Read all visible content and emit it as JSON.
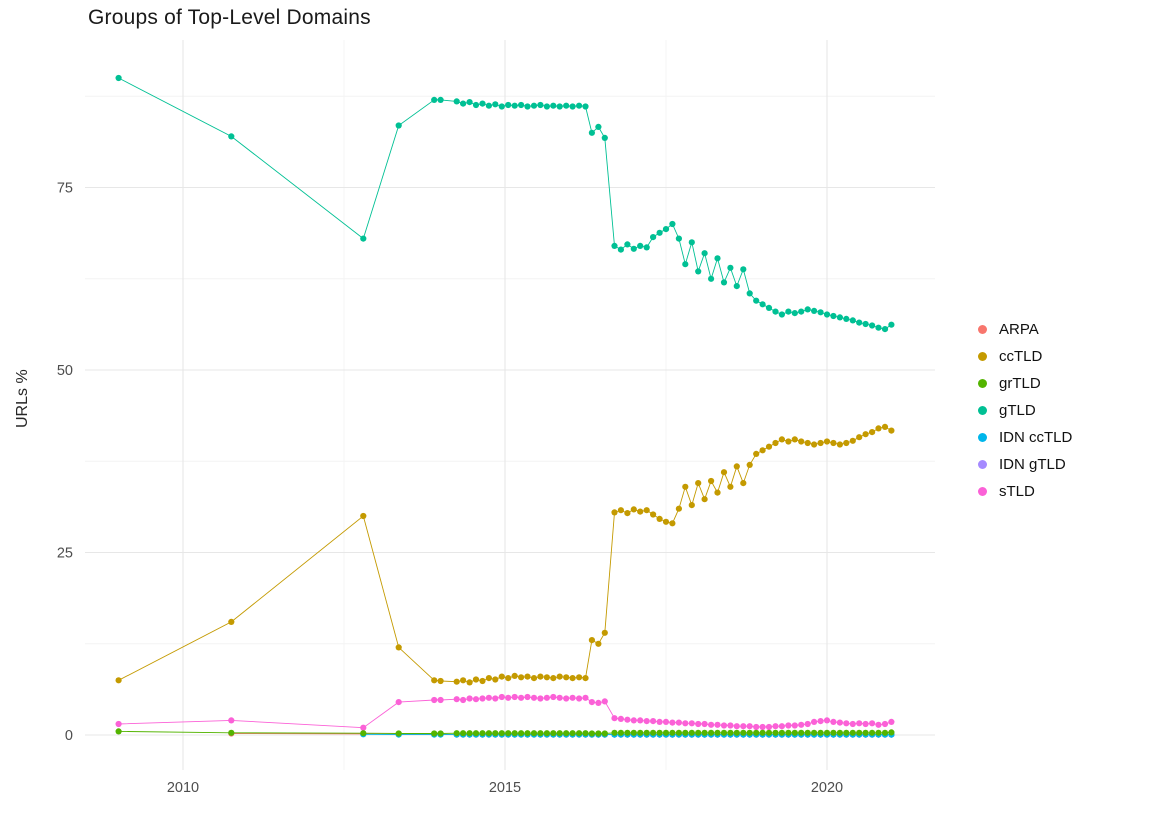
{
  "chart_data": {
    "type": "line",
    "title": "Groups of Top-Level Domains",
    "xlabel": "",
    "ylabel": "URLs %",
    "legend_position": "right",
    "grid": true,
    "marker": "circle",
    "background": "#ffffff",
    "grid_major_color": "#e7e7e7",
    "grid_minor_color": "#f3f3f3",
    "tick_label_color": "#4d4d4d",
    "xlim": [
      2008.5,
      2021.7
    ],
    "ylim": [
      -3,
      95
    ],
    "x_tick_values": [
      2010,
      2015,
      2020
    ],
    "x_tick_labels": [
      "2010",
      "2015",
      "2020"
    ],
    "y_tick_values": [
      0,
      25,
      50,
      75
    ],
    "y_tick_labels": [
      "0",
      "25",
      "50",
      "75"
    ],
    "x_minor_ticks": [
      2012.5,
      2017.5
    ],
    "y_minor_ticks": [
      12.5,
      37.5,
      62.5,
      87.5
    ],
    "x": [
      2009,
      2010.75,
      2012.8,
      2013.35,
      2013.9,
      2014,
      2014.25,
      2014.35,
      2014.45,
      2014.55,
      2014.65,
      2014.75,
      2014.85,
      2014.95,
      2015.05,
      2015.15,
      2015.25,
      2015.35,
      2015.45,
      2015.55,
      2015.65,
      2015.75,
      2015.85,
      2015.95,
      2016.05,
      2016.15,
      2016.25,
      2016.35,
      2016.45,
      2016.55,
      2016.7,
      2016.8,
      2016.9,
      2017,
      2017.1,
      2017.2,
      2017.3,
      2017.4,
      2017.5,
      2017.6,
      2017.7,
      2017.8,
      2017.9,
      2018,
      2018.1,
      2018.2,
      2018.3,
      2018.4,
      2018.5,
      2018.6,
      2018.7,
      2018.8,
      2018.9,
      2019,
      2019.1,
      2019.2,
      2019.3,
      2019.4,
      2019.5,
      2019.6,
      2019.7,
      2019.8,
      2019.9,
      2020,
      2020.1,
      2020.2,
      2020.3,
      2020.4,
      2020.5,
      2020.6,
      2020.7,
      2020.8,
      2020.9,
      2021
    ],
    "series": [
      {
        "name": "ARPA",
        "color": "#F8766D",
        "values": [
          null,
          0.2,
          0.15,
          0.1,
          0.1,
          0.1,
          0.05,
          0.05,
          0.05,
          0.05,
          0.05,
          0.05,
          0.05,
          0.05,
          0.05,
          0.05,
          0.05,
          0.05,
          0.05,
          0.05,
          0.05,
          0.05,
          0.05,
          0.05,
          0.05,
          0.05,
          0.05,
          0.05,
          0.05,
          0.05,
          0.05,
          0.05,
          0.05,
          0.05,
          0.05,
          0.05,
          0.05,
          0.05,
          0.05,
          0.05,
          0.05,
          0.05,
          0.05,
          0.05,
          0.05,
          0.05,
          0.05,
          0.05,
          0.05,
          0.05,
          0.05,
          0.05,
          0.05,
          0.05,
          0.05,
          0.05,
          0.05,
          0.05,
          0.05,
          0.05,
          0.05,
          0.05,
          0.05,
          0.05,
          0.05,
          0.05,
          0.05,
          0.05,
          0.05,
          0.05,
          0.05,
          0.05,
          0.05,
          0.05
        ]
      },
      {
        "name": "ccTLD",
        "color": "#C49A00",
        "values": [
          7.5,
          15.5,
          30,
          12,
          7.5,
          7.4,
          7.3,
          7.5,
          7.2,
          7.6,
          7.4,
          7.8,
          7.6,
          8,
          7.8,
          8.1,
          7.9,
          8,
          7.8,
          8,
          7.9,
          7.8,
          8,
          7.9,
          7.8,
          7.9,
          7.8,
          13,
          12.5,
          14,
          30.5,
          30.8,
          30.4,
          30.9,
          30.6,
          30.8,
          30.2,
          29.6,
          29.2,
          29,
          31,
          34,
          31.5,
          34.5,
          32.3,
          34.8,
          33.2,
          36,
          34,
          36.8,
          34.5,
          37,
          38.5,
          39,
          39.5,
          40,
          40.5,
          40.2,
          40.5,
          40.2,
          40,
          39.8,
          40,
          40.2,
          40,
          39.8,
          40,
          40.3,
          40.8,
          41.2,
          41.5,
          42,
          42.2,
          41.7
        ]
      },
      {
        "name": "grTLD",
        "color": "#53B400",
        "values": [
          0.5,
          0.3,
          0.25,
          0.2,
          0.2,
          0.2,
          0.25,
          0.25,
          0.25,
          0.25,
          0.25,
          0.25,
          0.25,
          0.25,
          0.25,
          0.25,
          0.25,
          0.25,
          0.25,
          0.25,
          0.25,
          0.25,
          0.25,
          0.25,
          0.25,
          0.25,
          0.25,
          0.2,
          0.2,
          0.2,
          0.3,
          0.3,
          0.3,
          0.3,
          0.3,
          0.3,
          0.3,
          0.3,
          0.3,
          0.3,
          0.3,
          0.3,
          0.3,
          0.3,
          0.3,
          0.3,
          0.3,
          0.3,
          0.3,
          0.3,
          0.3,
          0.3,
          0.3,
          0.3,
          0.3,
          0.3,
          0.3,
          0.3,
          0.3,
          0.3,
          0.3,
          0.3,
          0.3,
          0.3,
          0.3,
          0.3,
          0.3,
          0.3,
          0.3,
          0.3,
          0.3,
          0.3,
          0.3,
          0.35
        ]
      },
      {
        "name": "gTLD",
        "color": "#00C094",
        "values": [
          90,
          82,
          68,
          83.5,
          87,
          87,
          86.8,
          86.5,
          86.7,
          86.3,
          86.5,
          86.2,
          86.4,
          86.1,
          86.3,
          86.2,
          86.3,
          86.1,
          86.2,
          86.3,
          86.1,
          86.2,
          86.1,
          86.2,
          86.1,
          86.2,
          86.1,
          82.5,
          83.3,
          81.8,
          67,
          66.5,
          67.2,
          66.6,
          67,
          66.8,
          68.2,
          68.8,
          69.3,
          70,
          68,
          64.5,
          67.5,
          63.5,
          66,
          62.5,
          65.3,
          62,
          64,
          61.5,
          63.8,
          60.5,
          59.5,
          59,
          58.5,
          58,
          57.6,
          58,
          57.8,
          58,
          58.3,
          58.1,
          57.9,
          57.6,
          57.4,
          57.2,
          57,
          56.8,
          56.5,
          56.3,
          56.1,
          55.8,
          55.6,
          56.2
        ]
      },
      {
        "name": "IDN ccTLD",
        "color": "#00B6EB",
        "values": [
          null,
          null,
          0.1,
          0.05,
          0.05,
          0.05,
          0.05,
          0.05,
          0.05,
          0.05,
          0.05,
          0.05,
          0.05,
          0.05,
          0.05,
          0.05,
          0.05,
          0.05,
          0.05,
          0.05,
          0.05,
          0.05,
          0.05,
          0.05,
          0.05,
          0.05,
          0.05,
          0.05,
          0.05,
          0.05,
          0.05,
          0.05,
          0.05,
          0.05,
          0.05,
          0.05,
          0.05,
          0.05,
          0.05,
          0.05,
          0.05,
          0.05,
          0.05,
          0.05,
          0.05,
          0.05,
          0.05,
          0.05,
          0.05,
          0.05,
          0.05,
          0.05,
          0.05,
          0.05,
          0.05,
          0.05,
          0.05,
          0.05,
          0.05,
          0.05,
          0.05,
          0.05,
          0.05,
          0.05,
          0.05,
          0.05,
          0.05,
          0.05,
          0.05,
          0.05,
          0.05,
          0.05,
          0.05,
          0.05
        ]
      },
      {
        "name": "IDN gTLD",
        "color": "#A58AFF",
        "values": [
          null,
          null,
          null,
          null,
          null,
          null,
          null,
          null,
          null,
          null,
          null,
          null,
          null,
          null,
          null,
          null,
          null,
          null,
          null,
          null,
          null,
          null,
          null,
          null,
          null,
          null,
          null,
          0.05,
          0.05,
          0.05,
          0.05,
          0.05,
          0.05,
          0.05,
          0.05,
          0.05,
          0.05,
          0.05,
          0.05,
          0.05,
          0.05,
          0.05,
          0.05,
          0.05,
          0.05,
          0.05,
          0.05,
          0.05,
          0.05,
          0.05,
          0.05,
          0.05,
          0.05,
          0.05,
          0.05,
          0.05,
          0.05,
          0.05,
          0.05,
          0.05,
          0.05,
          0.05,
          0.05,
          0.05,
          0.05,
          0.05,
          0.05,
          0.05,
          0.05,
          0.05,
          0.05,
          0.05,
          0.05,
          0.05
        ]
      },
      {
        "name": "sTLD",
        "color": "#FB61D7",
        "values": [
          1.5,
          2,
          1,
          4.5,
          4.8,
          4.8,
          4.9,
          4.8,
          5,
          4.9,
          5,
          5.1,
          5,
          5.2,
          5.1,
          5.2,
          5.1,
          5.2,
          5.1,
          5,
          5.1,
          5.2,
          5.1,
          5,
          5.1,
          5,
          5.1,
          4.5,
          4.4,
          4.6,
          2.3,
          2.2,
          2.1,
          2,
          2,
          1.9,
          1.9,
          1.8,
          1.8,
          1.7,
          1.7,
          1.6,
          1.6,
          1.5,
          1.5,
          1.4,
          1.4,
          1.3,
          1.3,
          1.2,
          1.2,
          1.2,
          1.1,
          1.1,
          1.1,
          1.2,
          1.2,
          1.3,
          1.3,
          1.4,
          1.5,
          1.8,
          1.9,
          2,
          1.8,
          1.7,
          1.6,
          1.5,
          1.6,
          1.5,
          1.6,
          1.4,
          1.5,
          1.8
        ]
      }
    ],
    "draw_order": [
      "ARPA",
      "IDN gTLD",
      "IDN ccTLD",
      "sTLD",
      "ccTLD",
      "gTLD",
      "grTLD"
    ]
  }
}
